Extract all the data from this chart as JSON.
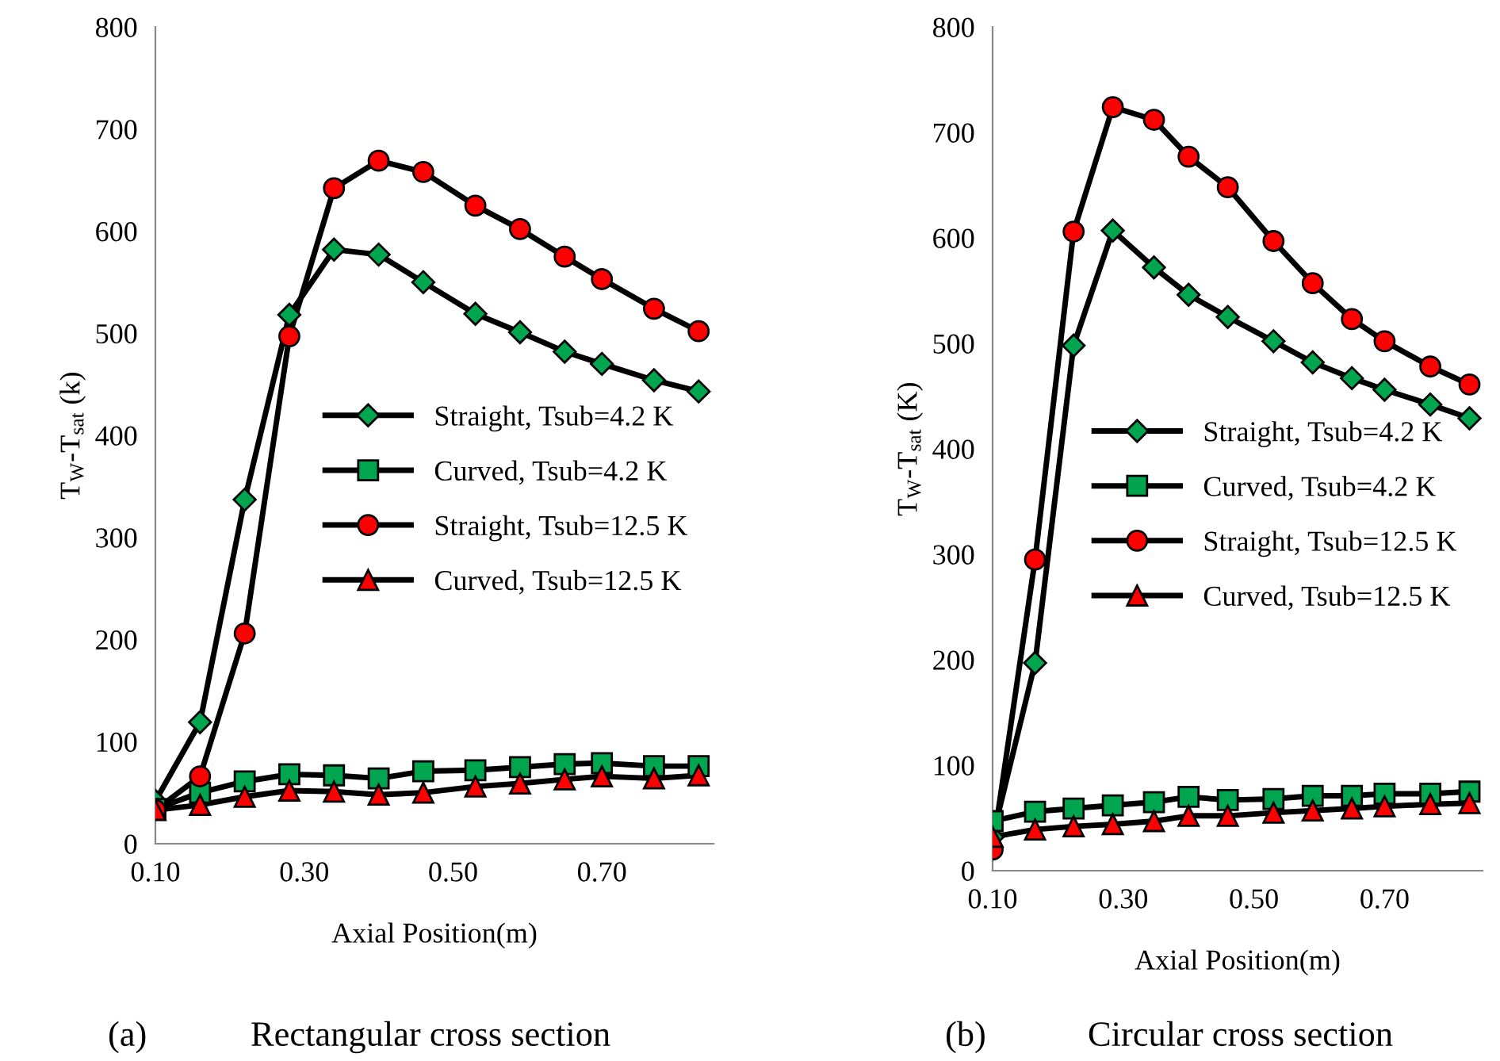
{
  "chart_data": [
    {
      "type": "line",
      "xlabel": "Axial Position(m)",
      "ylabel": "T$_{W}$-T$_{sat}$ (k)",
      "annotations": [
        "(a)",
        "Rectangular cross section"
      ],
      "xlim": [
        0.1,
        0.85
      ],
      "xticks": [
        {
          "value": 0.1,
          "label": "0.10"
        },
        {
          "value": 0.3,
          "label": "0.30"
        },
        {
          "value": 0.5,
          "label": "0.50"
        },
        {
          "value": 0.7,
          "label": "0.70"
        }
      ],
      "ylim": [
        0,
        800
      ],
      "yticks": [
        0,
        100,
        200,
        300,
        400,
        500,
        600,
        700,
        800
      ],
      "grid": false,
      "legend": "right",
      "x": [
        0.1,
        0.16,
        0.22,
        0.28,
        0.34,
        0.4,
        0.46,
        0.53,
        0.59,
        0.65,
        0.7,
        0.77,
        0.83
      ],
      "series": [
        {
          "name": "Straight, Tsub=4.2 K",
          "color": "#00a550",
          "marker": "diamond",
          "values": [
            42,
            119,
            337,
            518,
            582,
            577,
            550,
            519,
            501,
            482,
            470,
            454,
            443
          ]
        },
        {
          "name": "Curved, Tsub=4.2 K",
          "color": "#00a550",
          "marker": "square",
          "values": [
            34,
            50,
            61,
            68,
            67,
            64,
            71,
            72,
            75,
            78,
            79,
            76,
            76
          ]
        },
        {
          "name": "Straight, Tsub=12.5 K",
          "color": "#ff0000",
          "marker": "circle",
          "values": [
            33,
            66,
            206,
            497,
            642,
            669,
            658,
            625,
            602,
            575,
            553,
            524,
            502
          ]
        },
        {
          "name": "Curved, Tsub=12.5 K",
          "color": "#ff0000",
          "marker": "triangle",
          "values": [
            33,
            38,
            46,
            52,
            51,
            48,
            50,
            56,
            59,
            63,
            66,
            64,
            67
          ]
        }
      ]
    },
    {
      "type": "line",
      "xlabel": "Axial Position(m)",
      "ylabel": "T$_{W}$-T$_{sat}$ (K)",
      "annotations": [
        "(b)",
        "Circular cross section"
      ],
      "xlim": [
        0.1,
        0.85
      ],
      "xticks": [
        {
          "value": 0.1,
          "label": "0.10"
        },
        {
          "value": 0.3,
          "label": "0.30"
        },
        {
          "value": 0.5,
          "label": "0.50"
        },
        {
          "value": 0.7,
          "label": "0.70"
        }
      ],
      "ylim": [
        0,
        800
      ],
      "yticks": [
        0,
        100,
        200,
        300,
        400,
        500,
        600,
        700,
        800
      ],
      "grid": false,
      "legend": "right",
      "x": [
        0.1,
        0.165,
        0.224,
        0.284,
        0.347,
        0.4,
        0.46,
        0.53,
        0.59,
        0.65,
        0.7,
        0.77,
        0.83
      ],
      "series": [
        {
          "name": "Straight, Tsub=4.2 K",
          "color": "#00a550",
          "marker": "diamond",
          "values": [
            32,
            197,
            498,
            607,
            572,
            546,
            525,
            502,
            482,
            467,
            456,
            442,
            429
          ]
        },
        {
          "name": "Curved, Tsub=4.2 K",
          "color": "#00a550",
          "marker": "square",
          "values": [
            47,
            56,
            59,
            62,
            65,
            70,
            67,
            68,
            71,
            71,
            73,
            73,
            75
          ]
        },
        {
          "name": "Straight, Tsub=12.5 K",
          "color": "#ff0000",
          "marker": "circle",
          "values": [
            20,
            295,
            606,
            724,
            712,
            677,
            648,
            597,
            557,
            523,
            502,
            478,
            461
          ]
        },
        {
          "name": "Curved, Tsub=12.5 K",
          "color": "#ff0000",
          "marker": "triangle",
          "values": [
            32,
            39,
            42,
            44,
            47,
            52,
            52,
            55,
            57,
            59,
            61,
            63,
            64
          ]
        }
      ]
    }
  ]
}
